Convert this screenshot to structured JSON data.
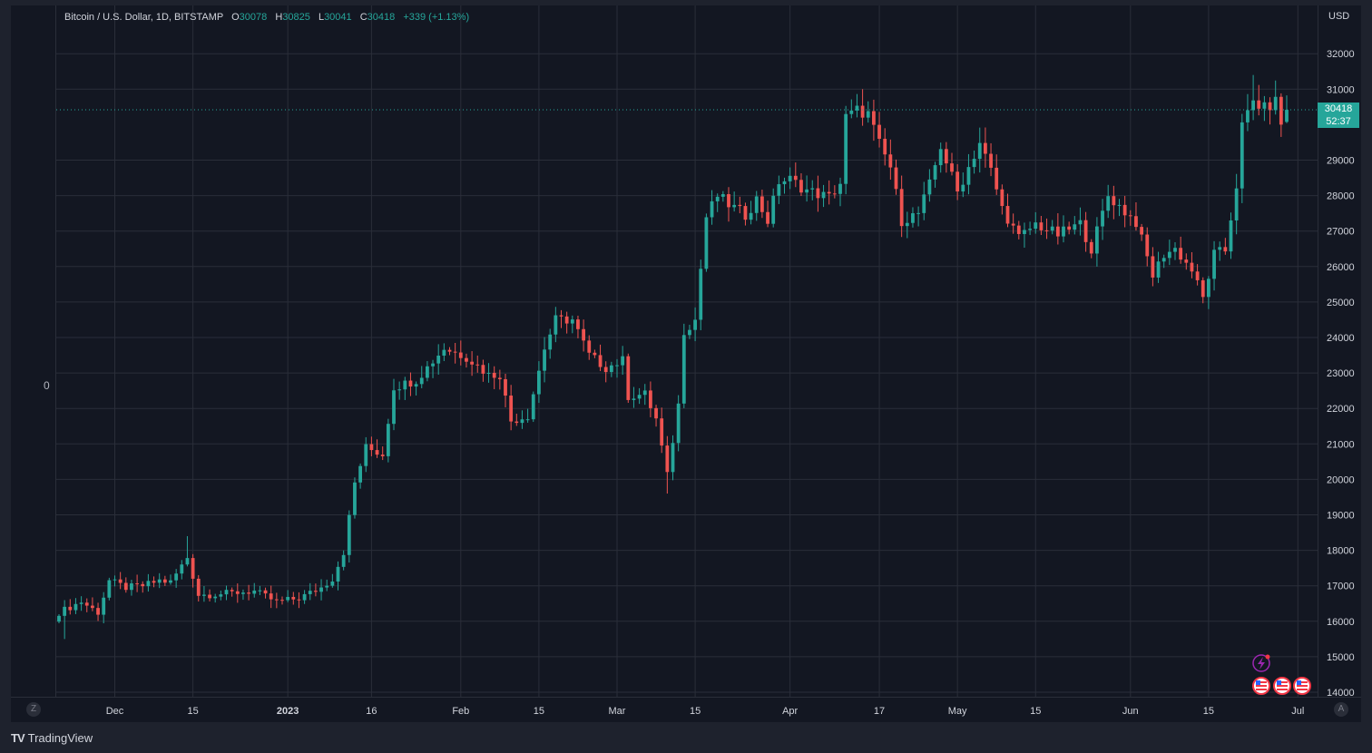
{
  "legend": {
    "symbol": "Bitcoin / U.S. Dollar, 1D, BITSTAMP",
    "o_label": "O",
    "o_value": "30078",
    "h_label": "H",
    "h_value": "30825",
    "l_label": "L",
    "l_value": "30041",
    "c_label": "C",
    "c_value": "30418",
    "change": "+339 (+1.13%)"
  },
  "price_axis": {
    "currency": "USD",
    "ticks": [
      "32000",
      "31000",
      "29000",
      "28000",
      "27000",
      "26000",
      "25000",
      "24000",
      "23000",
      "22000",
      "21000",
      "20000",
      "19000",
      "18000",
      "17000",
      "16000",
      "15000",
      "14000"
    ],
    "last_price_label": "30418",
    "countdown_label": "52:37"
  },
  "left_scale_label": "0",
  "time_axis": {
    "ticks": [
      "Dec",
      "15",
      "2023",
      "16",
      "Feb",
      "15",
      "Mar",
      "15",
      "Apr",
      "17",
      "May",
      "15",
      "Jun",
      "15",
      "Jul"
    ]
  },
  "corner_buttons": {
    "left": "Z",
    "right": "A"
  },
  "branding": {
    "name": "TradingView",
    "mark": "TV"
  },
  "colors": {
    "up": "#26a69a",
    "down": "#ef5350",
    "background": "#131722",
    "grid": "#2a2e39"
  },
  "chart_data": {
    "type": "candlestick",
    "title": "Bitcoin / U.S. Dollar, 1D, BITSTAMP",
    "ylabel": "USD",
    "ylim": [
      14000,
      32500
    ],
    "grid": true,
    "x_range": [
      "2022-11-21",
      "2023-06-29"
    ],
    "x_ticks": [
      {
        "date": "2022-12-01",
        "label": "Dec"
      },
      {
        "date": "2022-12-15",
        "label": "15"
      },
      {
        "date": "2023-01-01",
        "label": "2023"
      },
      {
        "date": "2023-01-16",
        "label": "16"
      },
      {
        "date": "2023-02-01",
        "label": "Feb"
      },
      {
        "date": "2023-02-15",
        "label": "15"
      },
      {
        "date": "2023-03-01",
        "label": "Mar"
      },
      {
        "date": "2023-03-15",
        "label": "15"
      },
      {
        "date": "2023-04-01",
        "label": "Apr"
      },
      {
        "date": "2023-04-17",
        "label": "17"
      },
      {
        "date": "2023-05-01",
        "label": "May"
      },
      {
        "date": "2023-05-15",
        "label": "15"
      },
      {
        "date": "2023-06-01",
        "label": "Jun"
      },
      {
        "date": "2023-06-15",
        "label": "15"
      },
      {
        "date": "2023-07-01",
        "label": "Jul"
      }
    ],
    "close_anchors": [
      [
        "2022-11-21",
        16250
      ],
      [
        "2022-11-23",
        16400
      ],
      [
        "2022-11-25",
        16550
      ],
      [
        "2022-11-28",
        16250
      ],
      [
        "2022-11-30",
        17150
      ],
      [
        "2022-12-03",
        16950
      ],
      [
        "2022-12-06",
        17000
      ],
      [
        "2022-12-09",
        17150
      ],
      [
        "2022-12-11",
        17100
      ],
      [
        "2022-12-14",
        17800
      ],
      [
        "2022-12-16",
        16750
      ],
      [
        "2022-12-18",
        16750
      ],
      [
        "2022-12-22",
        16800
      ],
      [
        "2022-12-26",
        16850
      ],
      [
        "2022-12-30",
        16550
      ],
      [
        "2023-01-03",
        16650
      ],
      [
        "2023-01-07",
        16950
      ],
      [
        "2023-01-09",
        17200
      ],
      [
        "2023-01-11",
        17950
      ],
      [
        "2023-01-13",
        19900
      ],
      [
        "2023-01-15",
        20900
      ],
      [
        "2023-01-18",
        20700
      ],
      [
        "2023-01-20",
        22600
      ],
      [
        "2023-01-24",
        22800
      ],
      [
        "2023-01-29",
        23700
      ],
      [
        "2023-02-02",
        23450
      ],
      [
        "2023-02-06",
        22950
      ],
      [
        "2023-02-08",
        22950
      ],
      [
        "2023-02-10",
        21650
      ],
      [
        "2023-02-13",
        21800
      ],
      [
        "2023-02-16",
        23700
      ],
      [
        "2023-02-18",
        24500
      ],
      [
        "2023-02-21",
        24500
      ],
      [
        "2023-02-24",
        23500
      ],
      [
        "2023-02-27",
        23150
      ],
      [
        "2023-03-02",
        23350
      ],
      [
        "2023-03-03",
        22350
      ],
      [
        "2023-03-06",
        22400
      ],
      [
        "2023-03-08",
        21700
      ],
      [
        "2023-03-10",
        20100
      ],
      [
        "2023-03-12",
        22100
      ],
      [
        "2023-03-13",
        24200
      ],
      [
        "2023-03-15",
        24500
      ],
      [
        "2023-03-17",
        27400
      ],
      [
        "2023-03-19",
        28000
      ],
      [
        "2023-03-21",
        27750
      ],
      [
        "2023-03-24",
        27450
      ],
      [
        "2023-03-26",
        27900
      ],
      [
        "2023-03-28",
        27300
      ],
      [
        "2023-03-30",
        28400
      ],
      [
        "2023-04-01",
        28450
      ],
      [
        "2023-04-04",
        28150
      ],
      [
        "2023-04-08",
        27950
      ],
      [
        "2023-04-10",
        28350
      ],
      [
        "2023-04-11",
        30200
      ],
      [
        "2023-04-13",
        30400
      ],
      [
        "2023-04-15",
        30300
      ],
      [
        "2023-04-17",
        29450
      ],
      [
        "2023-04-19",
        28800
      ],
      [
        "2023-04-21",
        27300
      ],
      [
        "2023-04-24",
        27500
      ],
      [
        "2023-04-26",
        28300
      ],
      [
        "2023-04-28",
        29400
      ],
      [
        "2023-05-01",
        28100
      ],
      [
        "2023-05-05",
        29500
      ],
      [
        "2023-05-07",
        28700
      ],
      [
        "2023-05-09",
        27650
      ],
      [
        "2023-05-12",
        26800
      ],
      [
        "2023-05-15",
        27200
      ],
      [
        "2023-05-19",
        26900
      ],
      [
        "2023-05-23",
        27200
      ],
      [
        "2023-05-25",
        26500
      ],
      [
        "2023-05-28",
        28000
      ],
      [
        "2023-05-30",
        27700
      ],
      [
        "2023-06-02",
        27250
      ],
      [
        "2023-06-05",
        25750
      ],
      [
        "2023-06-07",
        26350
      ],
      [
        "2023-06-09",
        26500
      ],
      [
        "2023-06-12",
        25900
      ],
      [
        "2023-06-14",
        25100
      ],
      [
        "2023-06-16",
        26350
      ],
      [
        "2023-06-18",
        26450
      ],
      [
        "2023-06-20",
        28300
      ],
      [
        "2023-06-21",
        29950
      ],
      [
        "2023-06-23",
        30650
      ],
      [
        "2023-06-25",
        30450
      ],
      [
        "2023-06-27",
        30650
      ],
      [
        "2023-06-28",
        30050
      ],
      [
        "2023-06-29",
        30418
      ]
    ],
    "last_bar": {
      "open": 30078,
      "high": 30825,
      "low": 30041,
      "close": 30418
    },
    "annotations": [
      {
        "date": "2022-11-22",
        "value": 15500,
        "label": "low"
      },
      {
        "date": "2022-12-14",
        "value": 18400,
        "label": "high"
      },
      {
        "date": "2023-03-10",
        "value": 19600,
        "label": "low"
      },
      {
        "date": "2023-04-14",
        "value": 31000,
        "label": "high"
      },
      {
        "date": "2023-06-15",
        "value": 24800,
        "label": "low"
      },
      {
        "date": "2023-06-23",
        "value": 31400,
        "label": "high"
      }
    ]
  }
}
